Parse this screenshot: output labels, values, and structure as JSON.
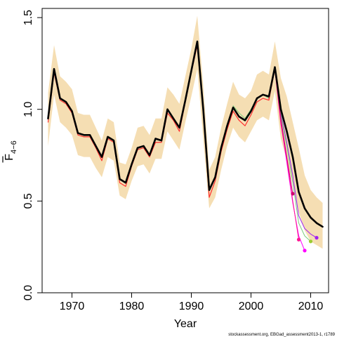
{
  "chart_data": {
    "type": "line",
    "title": "",
    "xlabel": "Year",
    "ylabel": "F",
    "ylabel_subscript": "4−6",
    "footnote": "stockassessment.org, EBGad_assessment2013-1, r1789",
    "xlim": [
      1965,
      2013
    ],
    "ylim": [
      0,
      1.55
    ],
    "xticks": [
      1970,
      1980,
      1990,
      2000,
      2010
    ],
    "xtick_labels": [
      "1970",
      "1980",
      "1990",
      "2000",
      "2010"
    ],
    "yticks": [
      0.0,
      0.5,
      1.0,
      1.5
    ],
    "ytick_labels": [
      "0.0",
      "0.5",
      "1.0",
      "1.5"
    ],
    "band_color": "#f5deb3",
    "band": {
      "x": [
        1966,
        1967,
        1968,
        1969,
        1970,
        1971,
        1972,
        1973,
        1974,
        1975,
        1976,
        1977,
        1978,
        1979,
        1980,
        1981,
        1982,
        1983,
        1984,
        1985,
        1986,
        1987,
        1988,
        1989,
        1990,
        1991,
        1992,
        1993,
        1994,
        1995,
        1996,
        1997,
        1998,
        1999,
        2000,
        2001,
        2002,
        2003,
        2004,
        2005,
        2006,
        2007,
        2008,
        2009,
        2010,
        2011,
        2012
      ],
      "upper": [
        1.09,
        1.35,
        1.18,
        1.15,
        1.11,
        0.98,
        0.97,
        0.97,
        0.9,
        0.83,
        0.95,
        0.93,
        0.71,
        0.7,
        0.79,
        0.9,
        0.91,
        0.86,
        0.95,
        0.95,
        1.12,
        1.08,
        1.03,
        1.18,
        1.33,
        1.51,
        1.13,
        0.67,
        0.74,
        0.9,
        1.03,
        1.15,
        1.08,
        1.06,
        1.1,
        1.19,
        1.21,
        1.19,
        1.37,
        1.17,
        1.07,
        0.93,
        0.79,
        0.64,
        0.56,
        0.52,
        0.49
      ],
      "lower": [
        0.8,
        1.08,
        0.93,
        0.9,
        0.86,
        0.75,
        0.74,
        0.74,
        0.68,
        0.63,
        0.74,
        0.72,
        0.53,
        0.51,
        0.61,
        0.69,
        0.7,
        0.65,
        0.73,
        0.73,
        0.88,
        0.83,
        0.78,
        0.93,
        1.07,
        1.22,
        0.84,
        0.46,
        0.52,
        0.67,
        0.8,
        0.9,
        0.85,
        0.82,
        0.88,
        0.94,
        0.96,
        0.94,
        1.1,
        0.84,
        0.72,
        0.59,
        0.44,
        0.34,
        0.28,
        0.26,
        0.24
      ]
    },
    "series": [
      {
        "color": "#000000",
        "width": 2.6,
        "x": [
          1966,
          1967,
          1968,
          1969,
          1970,
          1971,
          1972,
          1973,
          1974,
          1975,
          1976,
          1977,
          1978,
          1979,
          1980,
          1981,
          1982,
          1983,
          1984,
          1985,
          1986,
          1987,
          1988,
          1989,
          1990,
          1991,
          1992,
          1993,
          1994,
          1995,
          1996,
          1997,
          1998,
          1999,
          2000,
          2001,
          2002,
          2003,
          2004,
          2005,
          2006,
          2007,
          2008,
          2009,
          2010,
          2011,
          2012
        ],
        "values": [
          0.95,
          1.22,
          1.06,
          1.04,
          0.99,
          0.87,
          0.86,
          0.86,
          0.8,
          0.74,
          0.85,
          0.83,
          0.62,
          0.6,
          0.7,
          0.79,
          0.8,
          0.75,
          0.84,
          0.83,
          1.0,
          0.95,
          0.9,
          1.05,
          1.21,
          1.37,
          1.0,
          0.56,
          0.63,
          0.79,
          0.91,
          1.01,
          0.96,
          0.94,
          0.99,
          1.06,
          1.08,
          1.07,
          1.23,
          1.0,
          0.88,
          0.74,
          0.55,
          0.46,
          0.41,
          0.38,
          0.36
        ]
      },
      {
        "color": "#a020f0",
        "width": 1,
        "end_marker": true,
        "x": [
          2004,
          2005,
          2006,
          2007,
          2008,
          2009,
          2010,
          2011
        ],
        "values": [
          1.23,
          0.98,
          0.82,
          0.64,
          0.42,
          0.35,
          0.32,
          0.3
        ]
      },
      {
        "color": "#7ccd7c",
        "width": 1,
        "end_marker": true,
        "end_marker_color": "#9acd32",
        "x": [
          1997,
          1998,
          1999,
          2000,
          2001,
          2002,
          2003,
          2004,
          2005,
          2006,
          2007,
          2008,
          2009,
          2010
        ],
        "values": [
          1.02,
          0.98,
          0.95,
          1.0,
          1.06,
          1.08,
          1.06,
          1.23,
          0.97,
          0.8,
          0.6,
          0.38,
          0.31,
          0.28
        ]
      },
      {
        "color": "#ff00ff",
        "width": 1,
        "end_marker": true,
        "x": [
          2003,
          2004,
          2005,
          2006,
          2007,
          2008,
          2009
        ],
        "values": [
          1.06,
          1.22,
          0.93,
          0.71,
          0.49,
          0.31,
          0.23
        ]
      },
      {
        "color": "#ff1493",
        "width": 1,
        "end_marker": true,
        "x": [
          2003,
          2004,
          2005,
          2006,
          2007,
          2008
        ],
        "values": [
          1.06,
          1.22,
          0.92,
          0.73,
          0.5,
          0.29
        ]
      },
      {
        "color": "#d0006f",
        "width": 1,
        "end_marker": true,
        "x": [
          2003,
          2004,
          2005,
          2006,
          2007
        ],
        "values": [
          1.06,
          1.22,
          0.95,
          0.74,
          0.54
        ]
      },
      {
        "color": "#ff3030",
        "width": 1.2,
        "x": [
          1966,
          1967,
          1968,
          1969,
          1970,
          1971,
          1972,
          1973,
          1974,
          1975,
          1976,
          1977,
          1978,
          1979,
          1980,
          1981,
          1982,
          1983,
          1984,
          1985,
          1986,
          1987,
          1988,
          1989,
          1990,
          1991,
          1992,
          1993,
          1994,
          1995,
          1996,
          1997,
          1998,
          1999,
          2000,
          2001,
          2002,
          2003,
          2004
        ],
        "values": [
          0.93,
          1.2,
          1.05,
          1.03,
          0.98,
          0.86,
          0.85,
          0.85,
          0.79,
          0.72,
          0.84,
          0.82,
          0.6,
          0.58,
          0.69,
          0.78,
          0.79,
          0.74,
          0.82,
          0.82,
          0.98,
          0.94,
          0.88,
          1.04,
          1.2,
          1.35,
          0.98,
          0.52,
          0.61,
          0.77,
          0.89,
          0.99,
          0.94,
          0.91,
          0.97,
          1.04,
          1.06,
          1.05,
          1.22
        ]
      }
    ]
  }
}
